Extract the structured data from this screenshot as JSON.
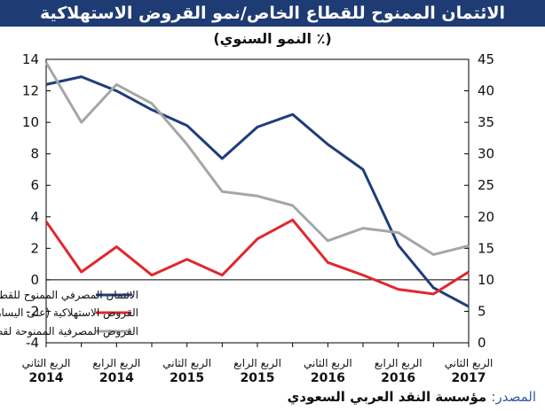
{
  "header": {
    "title": "الائتمان الممنوح للقطاع الخاص/نمو القروض الاستهلاكية",
    "subtitle": "(٪ النمو السنوي)"
  },
  "footer": {
    "source_label": "المصدر",
    "source_sep": ":",
    "source_text": " مؤسسة النقد العربي السعودي"
  },
  "colors": {
    "title_bg": "#1f3b73",
    "series_credit": "#1f3d7a",
    "series_consumer": "#e0282e",
    "series_real_estate": "#a6a6a6"
  },
  "chart_data": {
    "type": "line",
    "x": [
      "الربع الثاني 2014",
      "الربع الرابع 2014",
      "الربع الثاني 2015",
      "الربع الرابع 2015",
      "الربع الثاني 2016",
      "الربع الرابع 2016",
      "الربع الثاني 2017"
    ],
    "x_ticks": [
      {
        "quarter": "الربع الثاني",
        "year": "2014"
      },
      {
        "quarter": "الربع الرابع",
        "year": "2014"
      },
      {
        "quarter": "الربع الثاني",
        "year": "2015"
      },
      {
        "quarter": "الربع الرابع",
        "year": "2015"
      },
      {
        "quarter": "الربع الثاني",
        "year": "2016"
      },
      {
        "quarter": "الربع الرابع",
        "year": "2016"
      },
      {
        "quarter": "الربع الثاني",
        "year": "2017"
      }
    ],
    "y_left": {
      "ticks": [
        "14",
        "12",
        "10",
        "8",
        "6",
        "4",
        "2",
        "0",
        "-2",
        "-4"
      ],
      "range": [
        -4,
        14
      ]
    },
    "y_right": {
      "ticks": [
        "45",
        "40",
        "35",
        "30",
        "25",
        "20",
        "15",
        "10",
        "5",
        "0"
      ],
      "range": [
        0,
        45
      ]
    },
    "series": [
      {
        "name": "الائتمان المصرفي الممنوح للقطاع الخاص (على اليسار)",
        "axis": "left",
        "points": [
          [
            0,
            12.4
          ],
          [
            0.5,
            12.9
          ],
          [
            1,
            12.0
          ],
          [
            1.5,
            10.8
          ],
          [
            2,
            9.8
          ],
          [
            2.5,
            7.7
          ],
          [
            3,
            9.7
          ],
          [
            3.5,
            10.5
          ],
          [
            4,
            8.6
          ],
          [
            4.5,
            7.0
          ],
          [
            5,
            2.2
          ],
          [
            5.5,
            -0.5
          ],
          [
            6,
            -1.7
          ]
        ]
      },
      {
        "name": "القروض الاستهلاكية (على اليسار)",
        "axis": "left",
        "points": [
          [
            0,
            3.7
          ],
          [
            0.5,
            0.5
          ],
          [
            1,
            2.1
          ],
          [
            1.5,
            0.3
          ],
          [
            2,
            1.3
          ],
          [
            2.5,
            0.3
          ],
          [
            3,
            2.6
          ],
          [
            3.5,
            3.8
          ],
          [
            4,
            1.1
          ],
          [
            4.5,
            0.3
          ],
          [
            5,
            -0.6
          ],
          [
            5.5,
            -0.9
          ],
          [
            6,
            0.5
          ]
        ]
      },
      {
        "name": "القروض المصرفية الممنوحة لقطاع العقار (على اليمين)",
        "axis": "right",
        "points": [
          [
            0,
            44.5
          ],
          [
            0.5,
            35.0
          ],
          [
            1,
            41.0
          ],
          [
            1.5,
            38.0
          ],
          [
            2,
            31.5
          ],
          [
            2.5,
            24.0
          ],
          [
            3,
            23.3
          ],
          [
            3.5,
            21.8
          ],
          [
            4,
            16.2
          ],
          [
            4.5,
            18.2
          ],
          [
            5,
            17.5
          ],
          [
            5.5,
            14.0
          ],
          [
            6,
            15.4
          ]
        ]
      }
    ]
  }
}
